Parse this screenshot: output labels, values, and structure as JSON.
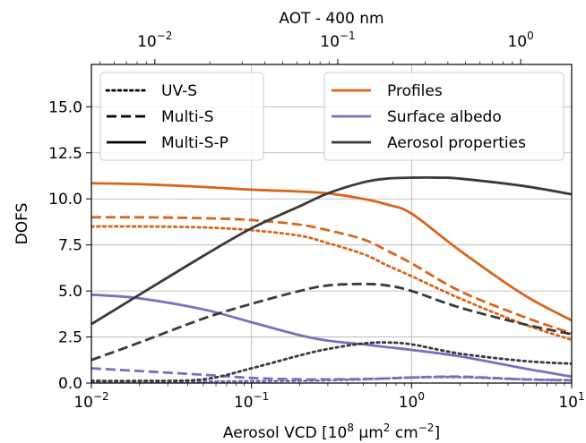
{
  "chart_data": {
    "type": "line",
    "x_axis": {
      "label_main": "Aerosol VCD [10",
      "label_exp1": "8",
      "label_mid": " µm",
      "label_exp2": "2",
      "label_mid2": " cm",
      "label_exp3": "−2",
      "label_end": "]",
      "scale": "log",
      "range": [
        0.01,
        10
      ],
      "ticks": [
        {
          "value": 0.01,
          "base": "10",
          "exp": "−2"
        },
        {
          "value": 0.1,
          "base": "10",
          "exp": "−1"
        },
        {
          "value": 1,
          "base": "10",
          "exp": "0"
        },
        {
          "value": 10,
          "base": "10",
          "exp": "1"
        }
      ]
    },
    "top_axis": {
      "label": "AOT - 400 nm",
      "scale": "log",
      "range": [
        0.0045,
        1.9
      ],
      "ticks": [
        {
          "value": 0.01,
          "base": "10",
          "exp": "−2"
        },
        {
          "value": 0.1,
          "base": "10",
          "exp": "−1"
        },
        {
          "value": 1,
          "base": "10",
          "exp": "0"
        }
      ]
    },
    "y_axis": {
      "label": "DOFS",
      "range": [
        0,
        17.3
      ],
      "ticks": [
        "0.0",
        "2.5",
        "5.0",
        "7.5",
        "10.0",
        "12.5",
        "15.0"
      ],
      "tick_values": [
        0,
        2.5,
        5,
        7.5,
        10,
        12.5,
        15
      ]
    },
    "grid": true,
    "legend_linestyle": {
      "placement": "top-left",
      "entries": [
        {
          "label": "UV-S",
          "dash": "dotted"
        },
        {
          "label": "Multi-S",
          "dash": "dashed"
        },
        {
          "label": "Multi-S-P",
          "dash": "solid"
        }
      ]
    },
    "legend_color": {
      "placement": "top-right",
      "entries": [
        {
          "label": "Profiles",
          "color": "#d9651b"
        },
        {
          "label": "Surface albedo",
          "color": "#7a6fbe"
        },
        {
          "label": "Aerosol properties",
          "color": "#3a3a3a"
        }
      ]
    },
    "series": [
      {
        "group": "Profiles",
        "style": "Multi-S-P",
        "color": "#d9651b",
        "dash": "solid",
        "x": [
          0.01,
          0.02,
          0.05,
          0.1,
          0.2,
          0.3,
          0.5,
          0.7,
          1,
          2,
          5,
          10
        ],
        "y": [
          10.85,
          10.8,
          10.65,
          10.5,
          10.4,
          10.3,
          10.0,
          9.7,
          9.2,
          7.2,
          4.8,
          3.4
        ]
      },
      {
        "group": "Profiles",
        "style": "Multi-S",
        "color": "#d9651b",
        "dash": "dashed",
        "x": [
          0.01,
          0.02,
          0.05,
          0.1,
          0.2,
          0.3,
          0.5,
          0.7,
          1,
          2,
          5,
          10
        ],
        "y": [
          9.0,
          9.0,
          8.95,
          8.85,
          8.6,
          8.3,
          7.8,
          7.2,
          6.5,
          5.0,
          3.6,
          2.7
        ]
      },
      {
        "group": "Profiles",
        "style": "UV-S",
        "color": "#d9651b",
        "dash": "dotted",
        "x": [
          0.01,
          0.02,
          0.05,
          0.1,
          0.2,
          0.3,
          0.5,
          0.7,
          1,
          2,
          5,
          10
        ],
        "y": [
          8.5,
          8.5,
          8.45,
          8.3,
          8.0,
          7.6,
          7.0,
          6.4,
          5.8,
          4.6,
          3.2,
          2.35
        ]
      },
      {
        "group": "Surface albedo",
        "style": "Multi-S-P",
        "color": "#7a6fbe",
        "dash": "solid",
        "x": [
          0.01,
          0.02,
          0.05,
          0.1,
          0.2,
          0.3,
          0.5,
          0.7,
          1,
          2,
          5,
          10
        ],
        "y": [
          4.8,
          4.6,
          4.0,
          3.3,
          2.6,
          2.3,
          2.1,
          1.95,
          1.8,
          1.45,
          0.8,
          0.35
        ]
      },
      {
        "group": "Surface albedo",
        "style": "Multi-S",
        "color": "#7a6fbe",
        "dash": "dashed",
        "x": [
          0.01,
          0.02,
          0.05,
          0.1,
          0.2,
          0.3,
          0.5,
          0.7,
          1,
          2,
          5,
          10
        ],
        "y": [
          0.8,
          0.65,
          0.45,
          0.28,
          0.2,
          0.2,
          0.22,
          0.25,
          0.3,
          0.35,
          0.2,
          0.15
        ]
      },
      {
        "group": "Surface albedo",
        "style": "UV-S",
        "color": "#7a6fbe",
        "dash": "dotted",
        "x": [
          0.01,
          0.02,
          0.05,
          0.1,
          0.2,
          0.3,
          0.5,
          0.7,
          1,
          2,
          5,
          10
        ],
        "y": [
          0.08,
          0.08,
          0.08,
          0.1,
          0.12,
          0.15,
          0.2,
          0.25,
          0.3,
          0.32,
          0.2,
          0.15
        ]
      },
      {
        "group": "Aerosol properties",
        "style": "Multi-S-P",
        "color": "#3a3a3a",
        "dash": "solid",
        "x": [
          0.01,
          0.02,
          0.05,
          0.1,
          0.2,
          0.3,
          0.5,
          0.7,
          1,
          1.5,
          2,
          5,
          10
        ],
        "y": [
          3.2,
          4.8,
          6.9,
          8.4,
          9.6,
          10.3,
          10.9,
          11.1,
          11.15,
          11.15,
          11.1,
          10.7,
          10.25
        ]
      },
      {
        "group": "Aerosol properties",
        "style": "Multi-S",
        "color": "#3a3a3a",
        "dash": "dashed",
        "x": [
          0.01,
          0.02,
          0.05,
          0.1,
          0.2,
          0.3,
          0.5,
          0.7,
          1,
          2,
          5,
          10
        ],
        "y": [
          1.25,
          2.2,
          3.5,
          4.3,
          5.0,
          5.3,
          5.38,
          5.3,
          5.0,
          4.1,
          3.2,
          2.65
        ]
      },
      {
        "group": "Aerosol properties",
        "style": "UV-S",
        "color": "#3a3a3a",
        "dash": "dotted",
        "x": [
          0.01,
          0.02,
          0.05,
          0.1,
          0.2,
          0.3,
          0.5,
          0.7,
          1,
          2,
          5,
          10
        ],
        "y": [
          0.12,
          0.12,
          0.2,
          0.8,
          1.5,
          1.85,
          2.15,
          2.2,
          2.1,
          1.6,
          1.2,
          1.05
        ]
      }
    ]
  }
}
